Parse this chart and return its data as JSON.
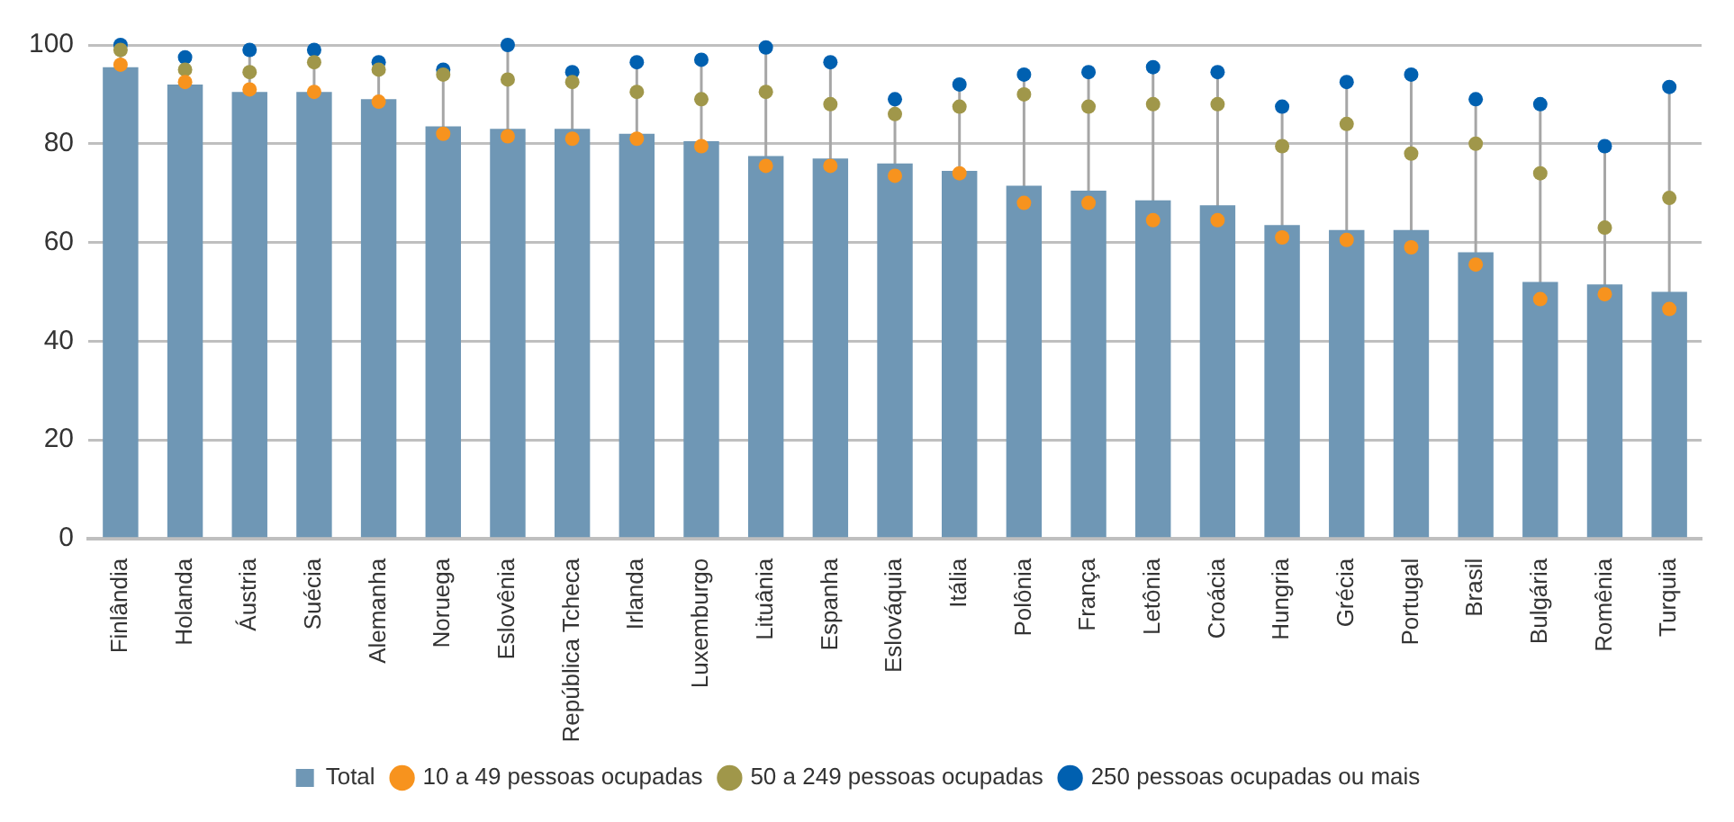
{
  "chart_data": {
    "type": "bar",
    "categories": [
      "Finlândia",
      "Holanda",
      "Áustria",
      "Suécia",
      "Alemanha",
      "Noruega",
      "Eslovênia",
      "República Tcheca",
      "Irlanda",
      "Luxemburgo",
      "Lituânia",
      "Espanha",
      "Eslováquia",
      "Itália",
      "Polônia",
      "França",
      "Letônia",
      "Croácia",
      "Hungria",
      "Grécia",
      "Portugal",
      "Brasil",
      "Bulgária",
      "Romênia",
      "Turquia"
    ],
    "series": [
      {
        "name": "Total",
        "color": "#6f97b5",
        "values": [
          95.5,
          92,
          90.5,
          90.5,
          89,
          83.5,
          83,
          83,
          82,
          80.5,
          77.5,
          77,
          76,
          74.5,
          71.5,
          70.5,
          68.5,
          67.5,
          63.5,
          62.5,
          62.5,
          58,
          52,
          51.5,
          50
        ]
      },
      {
        "name": "10 a 49 pessoas ocupadas",
        "type": "scatter",
        "color": "#f7931e",
        "values": [
          96,
          92.5,
          91,
          90.5,
          88.5,
          82,
          81.5,
          81,
          81,
          79.5,
          75.5,
          75.5,
          73.5,
          74,
          68,
          68,
          64.5,
          64.5,
          61,
          60.5,
          59,
          55.5,
          48.5,
          49.5,
          46.5
        ]
      },
      {
        "name": "50 a 249 pessoas ocupadas",
        "type": "scatter",
        "color": "#a0974a",
        "values": [
          99,
          95,
          94.5,
          96.5,
          95,
          94,
          93,
          92.5,
          90.5,
          89,
          90.5,
          88,
          86,
          87.5,
          90,
          87.5,
          88,
          88,
          79.5,
          84,
          78,
          80,
          74,
          63,
          69
        ]
      },
      {
        "name": "250 pessoas ocupadas ou mais",
        "type": "scatter",
        "color": "#0060b0",
        "values": [
          100,
          97.5,
          99,
          99,
          96.5,
          95,
          100,
          94.5,
          96.5,
          97,
          99.5,
          96.5,
          89,
          92,
          94,
          94.5,
          95.5,
          94.5,
          87.5,
          92.5,
          94,
          89,
          88,
          79.5,
          91.5
        ]
      }
    ],
    "ylim": [
      0,
      100
    ],
    "yticks": [
      0,
      20,
      40,
      60,
      80,
      100
    ],
    "grid": "y",
    "legend": "bottom",
    "marker": "circle"
  }
}
